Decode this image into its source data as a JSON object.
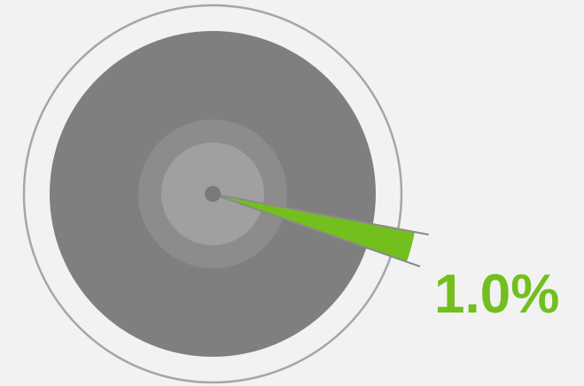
{
  "chart_data": {
    "type": "pie",
    "slices": [
      {
        "label": "1.0%",
        "value": 1.0
      }
    ],
    "total": 100,
    "title": "",
    "legend": "none",
    "colors": {
      "background": "#f2f2f2",
      "disc": "#7f7f7f",
      "hub_outer": "#8c8c8c",
      "hub_inner": "#a0a0a0",
      "center_dot": "#7a7a7a",
      "outer_ring": "#a6a6a6",
      "slice": "#72bf1e",
      "slice_edge": "#8a8a8a",
      "label": "#72bf1e"
    }
  }
}
